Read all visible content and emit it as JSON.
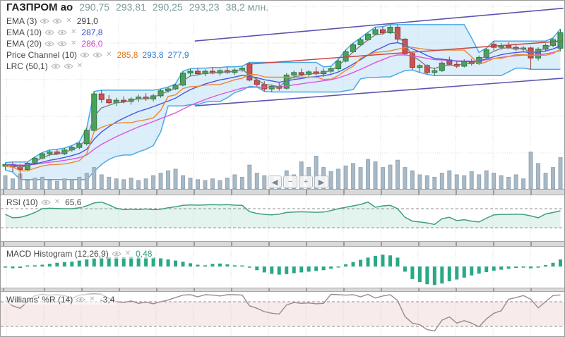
{
  "header": {
    "ticker": "ГАЗПРОМ ао",
    "open": "290,75",
    "high": "293,81",
    "low": "290,25",
    "close": "293,23",
    "volume": "38,2 млн."
  },
  "legend": {
    "close_icon": "✕",
    "items": [
      {
        "label": "EMA (3)",
        "values": [
          {
            "text": "291,0",
            "color": "#3d3d3d"
          }
        ]
      },
      {
        "label": "EMA (10)",
        "values": [
          {
            "text": "287,8",
            "color": "#3a49d0"
          }
        ]
      },
      {
        "label": "EMA (20)",
        "values": [
          {
            "text": "286,0",
            "color": "#cf3ccf"
          }
        ]
      },
      {
        "label": "Price Channel (10)",
        "values": [
          {
            "text": "285,8",
            "color": "#e0791f"
          },
          {
            "text": "293,8",
            "color": "#2f7fdb"
          },
          {
            "text": "277,9",
            "color": "#2f7fdb"
          }
        ]
      },
      {
        "label": "LRC (50,1)",
        "values": []
      }
    ]
  },
  "panels": {
    "rsi": {
      "label": "RSI (10)",
      "value": "65,6",
      "value_color": "#4a4a4a"
    },
    "macd": {
      "label": "MACD Histogram (12,26,9)",
      "value": "0,48",
      "value_color": "#2aa083"
    },
    "wr": {
      "label": "Williams' %R (14)",
      "value": "-3,4",
      "value_color": "#4a4a4a"
    }
  },
  "nav_buttons": [
    {
      "name": "pan-left",
      "glyph": "◀"
    },
    {
      "name": "zoom-out",
      "glyph": "−"
    },
    {
      "name": "zoom-in",
      "glyph": "+"
    },
    {
      "name": "pan-right",
      "glyph": "▶"
    }
  ],
  "colors": {
    "grid": "#dcdcdc",
    "candle_up_fill": "#46a35a",
    "candle_up_stroke": "#2a7a40",
    "candle_down_fill": "#c9534f",
    "candle_down_stroke": "#9a3634",
    "volume_fill": "#a9b9c6",
    "volume_stroke": "#93a7b6",
    "channel_line": "#4aa9e8",
    "channel_fill": "rgba(170,215,240,0.42)",
    "channel_mid": "#ee8833",
    "ema3": "#7d837b",
    "ema10": "#4955e0",
    "ema20": "#e052e0",
    "lrc": "#5a55b0",
    "trendline": "#c94540",
    "rsi_line": "#3f9d82",
    "rsi_fill": "rgba(80,180,140,0.16)",
    "macd_bar": "#29a985",
    "wr_line": "#9b8b8b",
    "wr_band": "rgba(200,120,120,0.15)",
    "level_dash": "#8f8f8f"
  },
  "chart_data": {
    "type": "candlestick",
    "title": "ГАЗПРОМ ао",
    "last_bar": {
      "open": 290.75,
      "high": 293.81,
      "low": 290.25,
      "close": 293.23,
      "volume_mln": 38.2
    },
    "ylim": [
      268.3,
      298.3
    ],
    "candles": [
      [
        272.0,
        272.6,
        271.4,
        272.3
      ],
      [
        272.3,
        272.7,
        271.1,
        271.9
      ],
      [
        271.9,
        272.4,
        269.9,
        271.5
      ],
      [
        271.5,
        272.7,
        271.2,
        272.5
      ],
      [
        272.5,
        273.5,
        272.3,
        273.3
      ],
      [
        273.3,
        274.2,
        273.1,
        274.0
      ],
      [
        274.0,
        274.6,
        273.6,
        274.3
      ],
      [
        274.3,
        274.7,
        273.8,
        274.0
      ],
      [
        274.0,
        274.9,
        273.8,
        274.6
      ],
      [
        274.6,
        275.3,
        274.3,
        275.0
      ],
      [
        275.0,
        275.9,
        274.7,
        275.6
      ],
      [
        275.6,
        278.1,
        275.3,
        277.7
      ],
      [
        277.7,
        283.9,
        277.5,
        283.5
      ],
      [
        283.5,
        284.1,
        282.1,
        282.6
      ],
      [
        282.6,
        283.3,
        281.9,
        282.1
      ],
      [
        282.1,
        282.9,
        281.6,
        282.5
      ],
      [
        282.5,
        283.1,
        282.0,
        282.3
      ],
      [
        282.3,
        283.0,
        281.8,
        282.7
      ],
      [
        282.7,
        283.4,
        282.2,
        283.0
      ],
      [
        283.0,
        283.6,
        282.4,
        282.7
      ],
      [
        282.7,
        283.5,
        282.3,
        283.2
      ],
      [
        283.2,
        284.3,
        282.9,
        284.0
      ],
      [
        284.0,
        284.6,
        283.7,
        284.3
      ],
      [
        284.3,
        285.1,
        284.1,
        284.9
      ],
      [
        284.9,
        287.1,
        284.7,
        286.8
      ],
      [
        286.8,
        287.5,
        286.3,
        287.1
      ],
      [
        287.1,
        287.6,
        286.5,
        286.7
      ],
      [
        286.7,
        287.4,
        286.3,
        287.1
      ],
      [
        287.1,
        287.7,
        286.6,
        286.8
      ],
      [
        286.8,
        287.5,
        286.4,
        287.2
      ],
      [
        287.2,
        287.8,
        286.7,
        286.9
      ],
      [
        286.9,
        287.6,
        286.5,
        287.3
      ],
      [
        287.3,
        287.9,
        287.0,
        287.6
      ],
      [
        288.3,
        288.5,
        285.5,
        285.7
      ],
      [
        285.7,
        286.2,
        284.6,
        285.0
      ],
      [
        285.0,
        285.5,
        283.9,
        284.3
      ],
      [
        284.3,
        285.0,
        283.8,
        284.7
      ],
      [
        284.7,
        285.3,
        284.0,
        284.4
      ],
      [
        284.4,
        286.8,
        284.2,
        286.5
      ],
      [
        286.5,
        287.2,
        285.9,
        286.9
      ],
      [
        286.9,
        287.5,
        286.3,
        286.6
      ],
      [
        286.6,
        287.3,
        286.1,
        287.0
      ],
      [
        287.0,
        287.8,
        286.4,
        286.7
      ],
      [
        286.7,
        287.6,
        286.2,
        287.1
      ],
      [
        287.1,
        287.9,
        286.7,
        287.5
      ],
      [
        287.5,
        289.0,
        287.2,
        288.7
      ],
      [
        288.7,
        290.5,
        288.5,
        290.2
      ],
      [
        290.2,
        291.6,
        290.0,
        291.3
      ],
      [
        291.3,
        292.4,
        291.1,
        292.1
      ],
      [
        292.1,
        293.3,
        291.9,
        293.0
      ],
      [
        293.0,
        294.1,
        292.8,
        293.7
      ],
      [
        293.7,
        294.2,
        292.9,
        293.2
      ],
      [
        293.2,
        294.5,
        293.0,
        294.1
      ],
      [
        294.1,
        294.5,
        291.7,
        292.2
      ],
      [
        292.2,
        292.4,
        289.6,
        289.9
      ],
      [
        289.9,
        290.1,
        287.3,
        287.7
      ],
      [
        287.7,
        288.3,
        286.9,
        288.0
      ],
      [
        288.0,
        288.2,
        286.6,
        286.9
      ],
      [
        286.9,
        287.7,
        286.4,
        287.2
      ],
      [
        287.2,
        288.7,
        287.0,
        288.4
      ],
      [
        288.9,
        289.4,
        288.0,
        288.2
      ],
      [
        288.2,
        288.8,
        287.6,
        287.9
      ],
      [
        287.9,
        289.0,
        287.7,
        288.7
      ],
      [
        288.7,
        289.1,
        288.0,
        288.3
      ],
      [
        288.3,
        289.6,
        288.1,
        289.3
      ],
      [
        289.3,
        290.8,
        289.1,
        290.5
      ],
      [
        291.4,
        291.9,
        290.4,
        290.9
      ],
      [
        290.9,
        291.6,
        290.5,
        291.2
      ],
      [
        291.2,
        291.7,
        290.6,
        290.9
      ],
      [
        290.9,
        291.4,
        290.3,
        290.6
      ],
      [
        290.6,
        291.1,
        290.1,
        290.8
      ],
      [
        290.8,
        291.0,
        287.4,
        289.2
      ],
      [
        289.2,
        290.9,
        288.8,
        290.6
      ],
      [
        290.6,
        291.5,
        290.2,
        291.2
      ],
      [
        291.2,
        292.4,
        290.9,
        292.1
      ],
      [
        290.75,
        293.81,
        290.25,
        293.23
      ]
    ],
    "volumes_mln": [
      16,
      12,
      18,
      10,
      13,
      14,
      10,
      9,
      12,
      11,
      14,
      19,
      26,
      17,
      14,
      12,
      11,
      13,
      10,
      12,
      16,
      19,
      22,
      24,
      16,
      13,
      11,
      10,
      12,
      10,
      13,
      17,
      14,
      29,
      19,
      16,
      14,
      12,
      22,
      17,
      33,
      26,
      40,
      26,
      21,
      24,
      28,
      31,
      26,
      36,
      33,
      26,
      29,
      35,
      26,
      22,
      17,
      16,
      14,
      19,
      22,
      17,
      16,
      21,
      17,
      22,
      19,
      16,
      14,
      17,
      12,
      45,
      31,
      19,
      26,
      38.2
    ],
    "overlays": {
      "ema": [
        {
          "period": 3,
          "last": 291.0
        },
        {
          "period": 10,
          "last": 287.8
        },
        {
          "period": 20,
          "last": 286.0
        }
      ],
      "price_channel": {
        "period": 10,
        "last_mid": 285.8,
        "last_upper": 293.8,
        "last_lower": 277.9
      },
      "lrc": {
        "period": 50,
        "width": 1,
        "upper": {
          "x": [
            25.6,
            75.4
          ],
          "price": [
            291.9,
            297.1
          ]
        },
        "lower": {
          "x": [
            25.6,
            75.4
          ],
          "price": [
            281.6,
            286.0
          ]
        }
      },
      "trendline": {
        "x": [
          32.6,
          75.4
        ],
        "price": [
          288.2,
          291.9
        ]
      }
    },
    "indicators": {
      "rsi": {
        "period": 10,
        "last": 65.6,
        "levels": [
          70,
          30
        ],
        "values": [
          58,
          51,
          52,
          56,
          62,
          70,
          71,
          70.5,
          70,
          70,
          72,
          76,
          82,
          84,
          78,
          71,
          68,
          69,
          68.5,
          69.5,
          68,
          69,
          72,
          74,
          77,
          78,
          77.5,
          78,
          78.5,
          78,
          78.5,
          77.5,
          77,
          64,
          60,
          58,
          57,
          58.5,
          62,
          63,
          63.5,
          63,
          62.5,
          63,
          66,
          70,
          73,
          76,
          79,
          84,
          73,
          76,
          77,
          70,
          52,
          44,
          42,
          40,
          37,
          49,
          52,
          45,
          47,
          44,
          42,
          50,
          57,
          58,
          58,
          58.5,
          58,
          55,
          51,
          59,
          62,
          65.6
        ]
      },
      "macd_histogram": {
        "fast": 12,
        "slow": 26,
        "signal": 9,
        "last": 0.48,
        "values": [
          -0.08,
          -0.12,
          -0.1,
          0.05,
          0.08,
          0.12,
          0.18,
          0.25,
          0.3,
          0.33,
          0.4,
          0.48,
          0.55,
          0.6,
          0.62,
          0.62,
          0.64,
          0.66,
          0.64,
          0.62,
          0.6,
          0.55,
          0.48,
          0.4,
          0.32,
          0.22,
          0.12,
          0.08,
          0.18,
          0.2,
          0.15,
          0.08,
          0.05,
          -0.08,
          -0.25,
          -0.4,
          -0.5,
          -0.55,
          -0.52,
          -0.45,
          -0.4,
          -0.35,
          -0.3,
          -0.25,
          -0.15,
          -0.05,
          0.15,
          0.3,
          0.45,
          0.6,
          0.72,
          0.8,
          0.75,
          0.6,
          -0.35,
          -0.85,
          -1.05,
          -1.2,
          -1.25,
          -1.15,
          -1.0,
          -0.88,
          -0.75,
          -0.6,
          -0.48,
          -0.38,
          -0.28,
          -0.22,
          -0.15,
          -0.1,
          -0.08,
          -0.12,
          -0.08,
          0.1,
          0.25,
          0.48
        ]
      },
      "williams_r": {
        "period": 14,
        "last": -3.4,
        "levels": [
          -20,
          -80
        ],
        "values": [
          -17,
          -30,
          -36,
          -20,
          -5,
          -2,
          -4,
          -3,
          -5,
          -12,
          -4,
          -2,
          -1,
          -2,
          -12,
          -20,
          -22,
          -18,
          -24,
          -21,
          -25,
          -20,
          -16,
          -10,
          -4,
          -3,
          -8,
          -3,
          -4,
          -6,
          -3,
          -3,
          -4,
          -30,
          -36,
          -44,
          -48,
          -50,
          -28,
          -22,
          -24,
          -23,
          -25,
          -24,
          -2,
          -3,
          -4,
          -3,
          -8,
          -2,
          -11,
          -6,
          -3,
          -17,
          -56,
          -72,
          -76,
          -88,
          -91,
          -65,
          -57,
          -72,
          -66,
          -72,
          -81,
          -62,
          -48,
          -42,
          -14,
          -10,
          -5,
          -14,
          -35,
          -20,
          -5,
          -3.4
        ]
      }
    }
  }
}
